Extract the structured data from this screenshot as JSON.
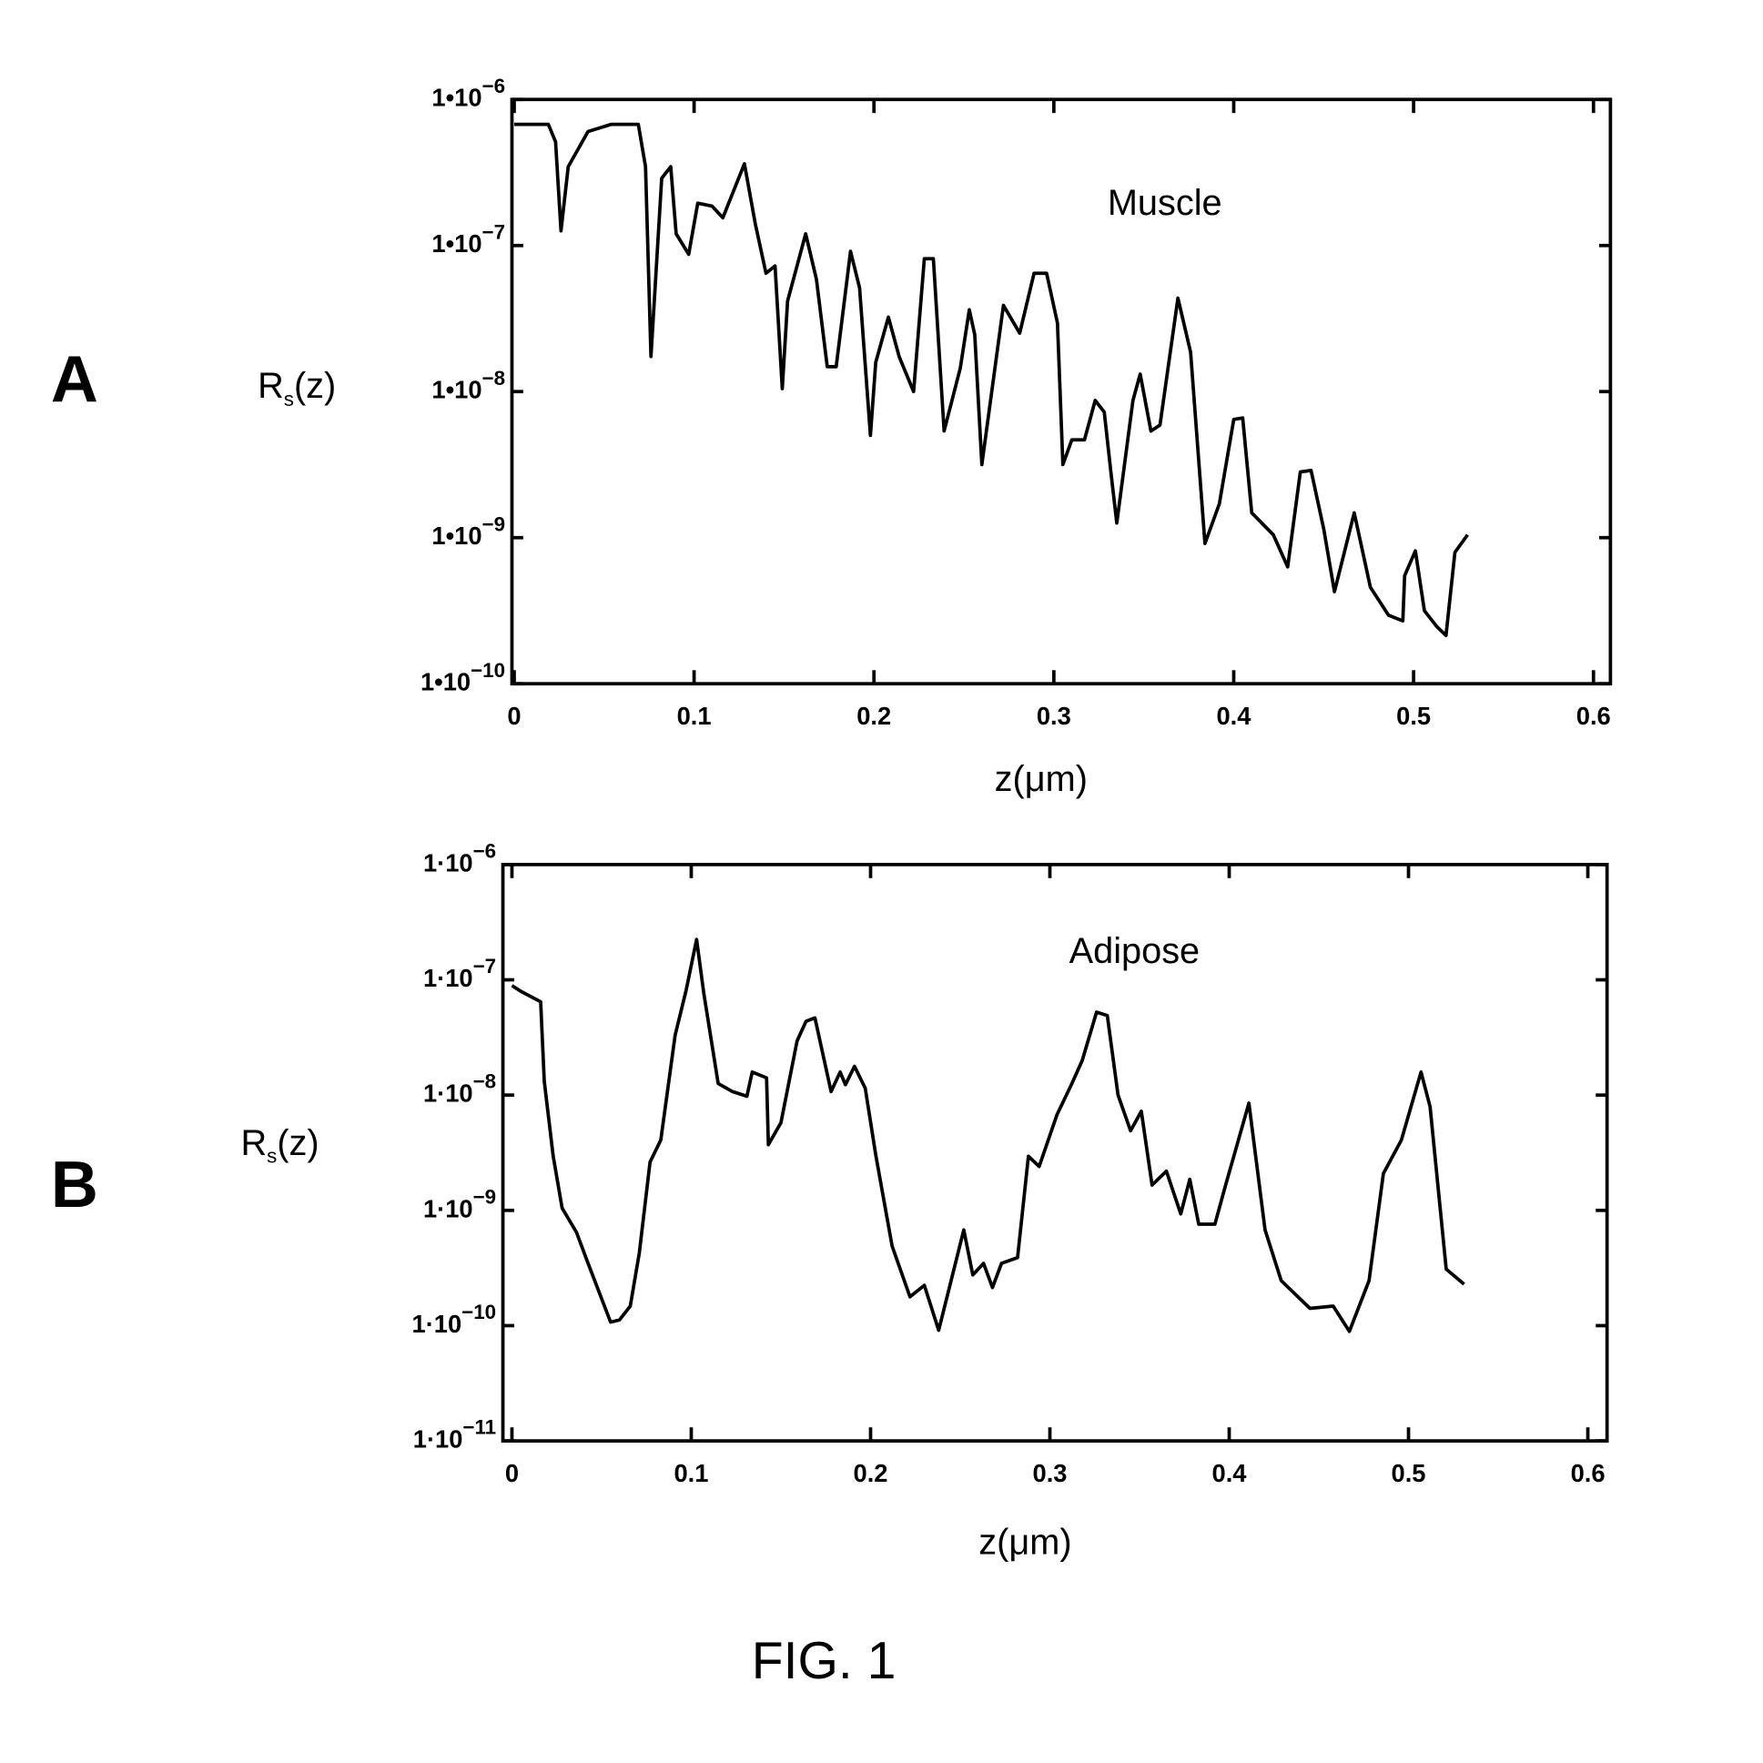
{
  "figure_label": "FIG. 1",
  "chart_data": [
    {
      "panel": "A",
      "type": "line",
      "annotation": "Muscle",
      "xlabel": "z(μm)",
      "ylabel": {
        "main": "R",
        "sub": "s",
        "rest": "(z)"
      },
      "xlim": [
        0,
        0.6
      ],
      "yscale": "log",
      "ylim_log10": [
        -10,
        -6
      ],
      "xticks": [
        "0",
        "0.1",
        "0.2",
        "0.3",
        "0.4",
        "0.5",
        "0.6"
      ],
      "yticks": [
        {
          "base": "1•10",
          "exp": "−6"
        },
        {
          "base": "1•10",
          "exp": "−7"
        },
        {
          "base": "1•10",
          "exp": "−8"
        },
        {
          "base": "1•10",
          "exp": "−9"
        },
        {
          "base": "1•10",
          "exp": "−10"
        }
      ],
      "series": [
        {
          "name": "Muscle",
          "x": [
            0,
            0.019,
            0.023,
            0.026,
            0.03,
            0.041,
            0.054,
            0.069,
            0.073,
            0.076,
            0.082,
            0.087,
            0.09,
            0.097,
            0.102,
            0.11,
            0.116,
            0.128,
            0.134,
            0.14,
            0.145,
            0.149,
            0.152,
            0.162,
            0.168,
            0.174,
            0.179,
            0.187,
            0.192,
            0.198,
            0.201,
            0.208,
            0.214,
            0.222,
            0.228,
            0.233,
            0.239,
            0.248,
            0.253,
            0.256,
            0.26,
            0.272,
            0.281,
            0.289,
            0.296,
            0.302,
            0.305,
            0.31,
            0.317,
            0.323,
            0.328,
            0.332,
            0.335,
            0.344,
            0.348,
            0.354,
            0.359,
            0.369,
            0.376,
            0.384,
            0.392,
            0.4,
            0.405,
            0.41,
            0.422,
            0.43,
            0.437,
            0.443,
            0.45,
            0.456,
            0.467,
            0.476,
            0.486,
            0.494,
            0.495,
            0.501,
            0.506,
            0.513,
            0.518,
            0.523,
            0.53
          ],
          "log10_y": [
            -6.17,
            -6.17,
            -6.29,
            -6.9,
            -6.46,
            -6.22,
            -6.17,
            -6.17,
            -6.46,
            -7.76,
            -6.54,
            -6.46,
            -6.92,
            -7.06,
            -6.71,
            -6.73,
            -6.81,
            -6.44,
            -6.85,
            -7.19,
            -7.14,
            -7.98,
            -7.38,
            -6.92,
            -7.23,
            -7.83,
            -7.83,
            -7.04,
            -7.29,
            -8.3,
            -7.8,
            -7.49,
            -7.76,
            -8.0,
            -7.09,
            -7.09,
            -8.27,
            -7.84,
            -7.44,
            -7.61,
            -8.5,
            -7.41,
            -7.6,
            -7.19,
            -7.19,
            -7.53,
            -8.5,
            -8.33,
            -8.33,
            -8.06,
            -8.14,
            -8.58,
            -8.9,
            -8.06,
            -7.88,
            -8.27,
            -8.23,
            -7.36,
            -7.73,
            -9.04,
            -8.77,
            -8.19,
            -8.18,
            -8.83,
            -8.98,
            -9.2,
            -8.55,
            -8.54,
            -8.94,
            -9.37,
            -8.83,
            -9.34,
            -9.53,
            -9.57,
            -9.26,
            -9.09,
            -9.5,
            -9.61,
            -9.67,
            -9.1,
            -8.98
          ]
        }
      ]
    },
    {
      "panel": "B",
      "type": "line",
      "annotation": "Adipose",
      "xlabel": "z(μm)",
      "ylabel": {
        "main": "R",
        "sub": "s",
        "rest": "(z)"
      },
      "xlim": [
        0,
        0.6
      ],
      "yscale": "log",
      "ylim_log10": [
        -11,
        -6
      ],
      "xticks": [
        "0",
        "0.1",
        "0.2",
        "0.3",
        "0.4",
        "0.5",
        "0.6"
      ],
      "yticks": [
        {
          "base": "1·10",
          "exp": "−6"
        },
        {
          "base": "1·10",
          "exp": "−7"
        },
        {
          "base": "1·10",
          "exp": "−8"
        },
        {
          "base": "1·10",
          "exp": "−9"
        },
        {
          "base": "1·10",
          "exp": "−10"
        },
        {
          "base": "1·10",
          "exp": "−11"
        }
      ],
      "series": [
        {
          "name": "Adipose",
          "x": [
            0,
            0.005,
            0.016,
            0.018,
            0.023,
            0.028,
            0.036,
            0.042,
            0.055,
            0.06,
            0.066,
            0.071,
            0.077,
            0.083,
            0.091,
            0.097,
            0.103,
            0.107,
            0.115,
            0.123,
            0.131,
            0.134,
            0.142,
            0.143,
            0.15,
            0.159,
            0.164,
            0.169,
            0.178,
            0.183,
            0.186,
            0.191,
            0.197,
            0.203,
            0.212,
            0.222,
            0.23,
            0.238,
            0.252,
            0.257,
            0.263,
            0.268,
            0.273,
            0.282,
            0.288,
            0.294,
            0.304,
            0.312,
            0.318,
            0.326,
            0.332,
            0.338,
            0.345,
            0.351,
            0.357,
            0.365,
            0.373,
            0.378,
            0.383,
            0.392,
            0.398,
            0.411,
            0.42,
            0.429,
            0.445,
            0.458,
            0.467,
            0.478,
            0.486,
            0.496,
            0.507,
            0.512,
            0.521,
            0.531
          ],
          "log10_y": [
            -7.05,
            -7.1,
            -7.19,
            -7.88,
            -8.53,
            -8.98,
            -9.19,
            -9.44,
            -9.97,
            -9.95,
            -9.83,
            -9.37,
            -8.58,
            -8.39,
            -7.48,
            -7.1,
            -6.65,
            -7.12,
            -7.9,
            -7.97,
            -8.01,
            -7.8,
            -7.85,
            -8.43,
            -8.24,
            -7.53,
            -7.36,
            -7.33,
            -7.97,
            -7.8,
            -7.91,
            -7.75,
            -7.94,
            -8.53,
            -9.31,
            -9.75,
            -9.65,
            -10.04,
            -9.17,
            -9.56,
            -9.46,
            -9.67,
            -9.46,
            -9.41,
            -8.53,
            -8.62,
            -8.17,
            -7.91,
            -7.7,
            -7.28,
            -7.31,
            -8.0,
            -8.31,
            -8.14,
            -8.78,
            -8.66,
            -9.03,
            -8.73,
            -9.12,
            -9.12,
            -8.78,
            -8.07,
            -9.17,
            -9.61,
            -9.85,
            -9.83,
            -10.05,
            -9.61,
            -8.68,
            -8.39,
            -7.8,
            -8.1,
            -9.51,
            -9.64
          ]
        }
      ]
    }
  ]
}
